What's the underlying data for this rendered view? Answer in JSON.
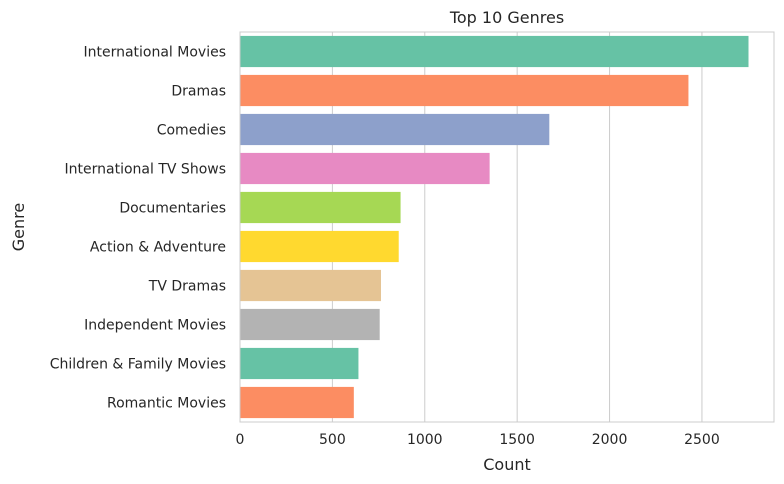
{
  "chart_data": {
    "type": "bar",
    "orientation": "horizontal",
    "title": "Top 10 Genres",
    "xlabel": "Count",
    "ylabel": "Genre",
    "categories": [
      "International Movies",
      "Dramas",
      "Comedies",
      "International TV Shows",
      "Documentaries",
      "Action & Adventure",
      "TV Dramas",
      "Independent Movies",
      "Children & Family Movies",
      "Romantic Movies"
    ],
    "values": [
      2752,
      2427,
      1674,
      1351,
      869,
      859,
      763,
      756,
      641,
      616
    ],
    "colors": [
      "#66c2a5",
      "#fc8d62",
      "#8da0cb",
      "#e78ac3",
      "#a6d854",
      "#ffd92f",
      "#e5c494",
      "#b3b3b3",
      "#66c2a5",
      "#fc8d62"
    ],
    "xlim": [
      0,
      2890
    ],
    "xticks": [
      0,
      500,
      1000,
      1500,
      2000,
      2500
    ],
    "grid": true,
    "style": "seaborn-whitegrid"
  }
}
